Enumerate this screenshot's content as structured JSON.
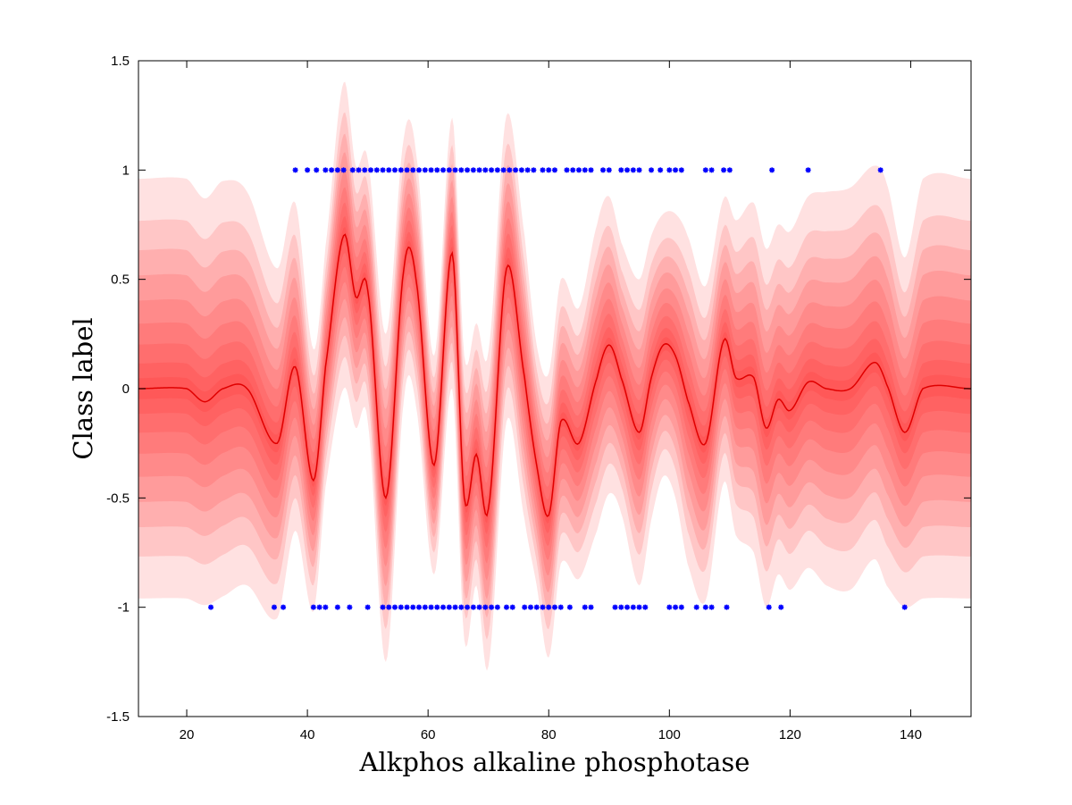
{
  "chart_data": {
    "type": "area",
    "xlabel": "Alkphos alkaline phosphotase",
    "ylabel": "Class label",
    "xlim": [
      12,
      150
    ],
    "ylim": [
      -1.5,
      1.5
    ],
    "xticks": [
      20,
      40,
      60,
      80,
      100,
      120,
      140
    ],
    "yticks": [
      1.5,
      1,
      0.5,
      0,
      -0.5,
      -1,
      -1.5
    ],
    "xtick_labels": [
      "20",
      "40",
      "60",
      "80",
      "100",
      "120",
      "140"
    ],
    "ytick_labels": [
      "1.5",
      "1",
      "0.5",
      "0",
      "-0.5",
      "-1",
      "-1.5"
    ],
    "grid": false,
    "band_color": "#ff1a1a",
    "point_color": "#0000ff",
    "mean_curve": {
      "x": [
        12,
        20,
        23,
        26,
        30,
        35,
        38,
        41,
        43,
        46,
        48,
        50,
        53,
        56,
        58,
        61,
        64,
        66,
        68,
        70,
        73,
        76,
        78,
        80,
        82,
        85,
        88,
        90,
        92,
        95,
        97,
        99,
        101,
        103,
        106,
        109,
        111,
        114,
        116,
        118,
        120,
        123,
        126,
        130,
        134,
        136,
        139,
        142,
        150
      ],
      "y": [
        0,
        0,
        -0.06,
        0,
        0,
        -0.25,
        0.1,
        -0.42,
        0.1,
        0.7,
        0.42,
        0.45,
        -0.5,
        0.55,
        0.5,
        -0.35,
        0.62,
        -0.5,
        -0.3,
        -0.55,
        0.55,
        0.05,
        -0.35,
        -0.58,
        -0.15,
        -0.25,
        0.05,
        0.2,
        0.05,
        -0.2,
        0.05,
        0.2,
        0.15,
        -0.05,
        -0.25,
        0.22,
        0.05,
        0.05,
        -0.18,
        -0.05,
        -0.1,
        0.03,
        0,
        0,
        0.12,
        0.02,
        -0.2,
        0,
        0
      ]
    },
    "uncertainty_halfwidth": {
      "x": [
        12,
        20,
        23,
        26,
        30,
        35,
        38,
        41,
        43,
        46,
        48,
        50,
        53,
        56,
        58,
        61,
        64,
        66,
        68,
        70,
        73,
        76,
        78,
        80,
        82,
        85,
        88,
        90,
        92,
        95,
        97,
        99,
        101,
        103,
        106,
        109,
        111,
        114,
        116,
        118,
        120,
        123,
        126,
        130,
        134,
        136,
        139,
        142,
        150
      ],
      "y": [
        0.96,
        0.96,
        0.93,
        0.95,
        0.9,
        0.8,
        0.75,
        0.6,
        0.55,
        0.7,
        0.6,
        0.6,
        0.75,
        0.6,
        0.58,
        0.5,
        0.62,
        0.65,
        0.6,
        0.72,
        0.7,
        0.65,
        0.55,
        0.65,
        0.65,
        0.62,
        0.7,
        0.68,
        0.62,
        0.7,
        0.65,
        0.6,
        0.65,
        0.75,
        0.72,
        0.65,
        0.72,
        0.8,
        0.82,
        0.8,
        0.82,
        0.85,
        0.9,
        0.92,
        0.9,
        0.92,
        0.8,
        0.96,
        0.96
      ]
    },
    "band_fractions": [
      1.0,
      0.8,
      0.66,
      0.54,
      0.42,
      0.31,
      0.21,
      0.12,
      0.05
    ],
    "series": [
      {
        "values_x": [
          38,
          40,
          41.5,
          43,
          44,
          45,
          46,
          47.5,
          48.5,
          49.5,
          50.5,
          51.5,
          52.5,
          53.5,
          54.5,
          55.5,
          56.5,
          57.5,
          58.5,
          59.5,
          60.5,
          61.5,
          62.5,
          63.5,
          64.5,
          65.5,
          66.5,
          67.5,
          68.5,
          69.5,
          70.5,
          71.5,
          72.5,
          73.5,
          74.5,
          75.5,
          76.5,
          77.5,
          79,
          80,
          81,
          83,
          84,
          85,
          86,
          87,
          89,
          90,
          92,
          93,
          94,
          95,
          97,
          98.5,
          100,
          101,
          102,
          106,
          107,
          109,
          110,
          117,
          123,
          135
        ],
        "values_y": 1
      },
      {
        "values_x": [
          24,
          34.5,
          36,
          41,
          42,
          43,
          45,
          47,
          50,
          52.5,
          53.5,
          54.5,
          55.5,
          56.5,
          57.5,
          58.5,
          59.5,
          60.5,
          61.5,
          62.5,
          63.5,
          64.5,
          65.5,
          66.5,
          67.5,
          68.5,
          69.5,
          70.5,
          71.5,
          73,
          74,
          76,
          77,
          78,
          79,
          80,
          81,
          82,
          83.5,
          86,
          87,
          91,
          92,
          93,
          94,
          95,
          96,
          100,
          101,
          102,
          104.5,
          106,
          107,
          109.5,
          116.5,
          118.5,
          139
        ],
        "values_y": -1
      }
    ]
  }
}
